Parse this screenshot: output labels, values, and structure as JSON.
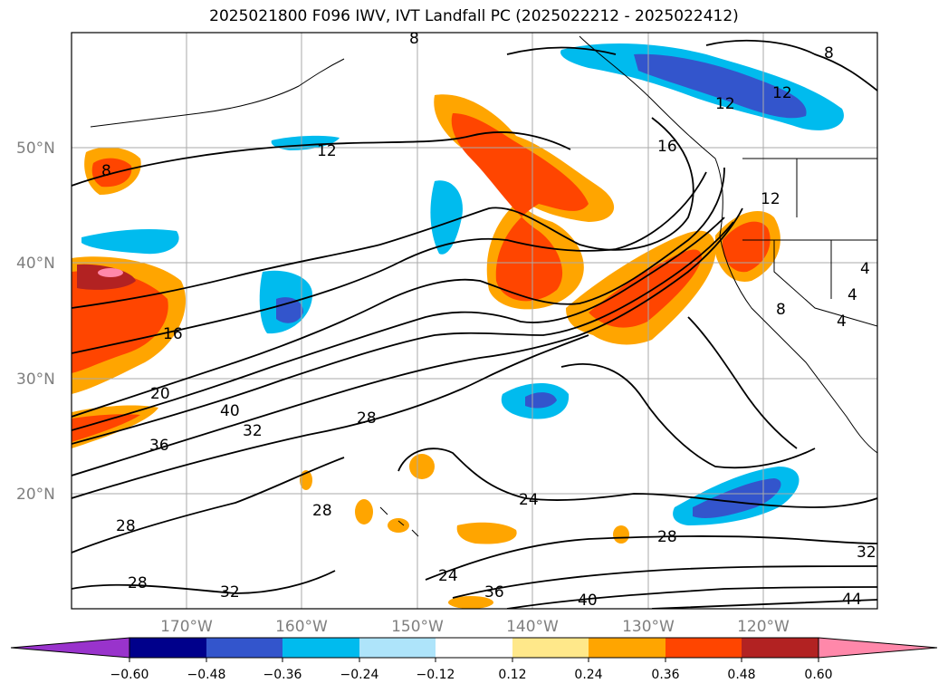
{
  "title": "2025021800 F096 IWV, IVT Landfall PC (2025022212 - 2025022412)",
  "map": {
    "lat_labels": [
      "50°N",
      "40°N",
      "30°N",
      "20°N"
    ],
    "lon_labels": [
      "170°W",
      "160°W",
      "150°W",
      "140°W",
      "130°W",
      "120°W"
    ],
    "contour_labels": [
      "8",
      "8",
      "8",
      "12",
      "12",
      "12",
      "16",
      "16",
      "12",
      "20",
      "40",
      "32",
      "36",
      "28",
      "28",
      "28",
      "32",
      "28",
      "24",
      "24",
      "28",
      "36",
      "40",
      "32",
      "44",
      "4",
      "4",
      "4",
      "8"
    ]
  },
  "colorbar": {
    "ticks": [
      "−0.60",
      "−0.48",
      "−0.36",
      "−0.24",
      "−0.12",
      "0.12",
      "0.24",
      "0.36",
      "0.48",
      "0.60"
    ],
    "colors": [
      "#9933cc",
      "#00008b",
      "#3355cc",
      "#00bbee",
      "#aee4fa",
      "#ffffff",
      "#ffe88a",
      "#ffa500",
      "#ff4500",
      "#b22222",
      "#ff88aa"
    ]
  }
}
